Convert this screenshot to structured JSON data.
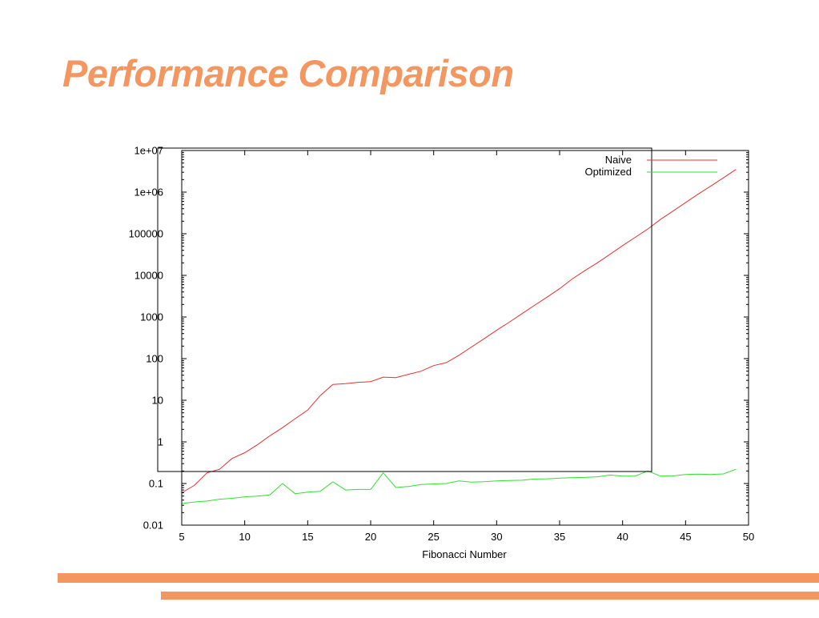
{
  "slide": {
    "title": "Performance Comparison",
    "accent_color": "#f4965f"
  },
  "chart_data": {
    "type": "line",
    "title": "",
    "xlabel": "Fibonacci Number",
    "ylabel": "",
    "xlim": [
      5,
      50
    ],
    "ylim": [
      0.01,
      10000000
    ],
    "yscale": "log",
    "grid": false,
    "legend_position": "top-right",
    "x_ticks": [
      5,
      10,
      15,
      20,
      25,
      30,
      35,
      40,
      45,
      50
    ],
    "x_tick_labels": [
      "5",
      "10",
      "15",
      "20",
      "25",
      "30",
      "35",
      "40",
      "45",
      "50"
    ],
    "y_ticks": [
      0.01,
      0.1,
      1,
      10,
      100,
      1000,
      10000,
      100000,
      1000000,
      10000000
    ],
    "y_tick_labels": [
      "0.01",
      "0.1",
      "1",
      "10",
      "100",
      "1000",
      "10000",
      "100000",
      "1e+06",
      "1e+07"
    ],
    "series": [
      {
        "name": "Naive",
        "color": "#e83030",
        "x": [
          5,
          6,
          7,
          8,
          9,
          10,
          11,
          12,
          13,
          14,
          15,
          16,
          17,
          18,
          19,
          20,
          21,
          22,
          23,
          24,
          25,
          26,
          27,
          28,
          29,
          30,
          31,
          32,
          33,
          34,
          35,
          36,
          37,
          38,
          39,
          40,
          41,
          42,
          43,
          44,
          45,
          46,
          47,
          48,
          49
        ],
        "values": [
          0.06,
          0.09,
          0.18,
          0.22,
          0.4,
          0.55,
          0.85,
          1.4,
          2.2,
          3.6,
          5.8,
          13,
          24,
          25,
          27,
          28,
          36,
          35,
          42,
          50,
          68,
          80,
          120,
          190,
          300,
          480,
          750,
          1200,
          1900,
          3000,
          4800,
          8200,
          13000,
          20000,
          32000,
          52000,
          82000,
          130000,
          220000,
          350000,
          560000,
          900000,
          1400000,
          2200000,
          3500000
        ]
      },
      {
        "name": "Optimized",
        "color": "#30e030",
        "x": [
          5,
          6,
          7,
          8,
          9,
          10,
          11,
          12,
          13,
          14,
          15,
          16,
          17,
          18,
          19,
          20,
          21,
          22,
          23,
          24,
          25,
          26,
          27,
          28,
          29,
          30,
          31,
          32,
          33,
          34,
          35,
          36,
          37,
          38,
          39,
          40,
          41,
          42,
          43,
          44,
          45,
          46,
          47,
          48,
          49
        ],
        "values": [
          0.033,
          0.036,
          0.038,
          0.042,
          0.044,
          0.048,
          0.05,
          0.053,
          0.1,
          0.057,
          0.062,
          0.065,
          0.11,
          0.07,
          0.072,
          0.072,
          0.18,
          0.08,
          0.085,
          0.095,
          0.098,
          0.1,
          0.115,
          0.108,
          0.11,
          0.115,
          0.118,
          0.12,
          0.128,
          0.13,
          0.135,
          0.138,
          0.14,
          0.145,
          0.16,
          0.15,
          0.15,
          0.2,
          0.15,
          0.152,
          0.165,
          0.168,
          0.165,
          0.17,
          0.22
        ]
      }
    ]
  }
}
